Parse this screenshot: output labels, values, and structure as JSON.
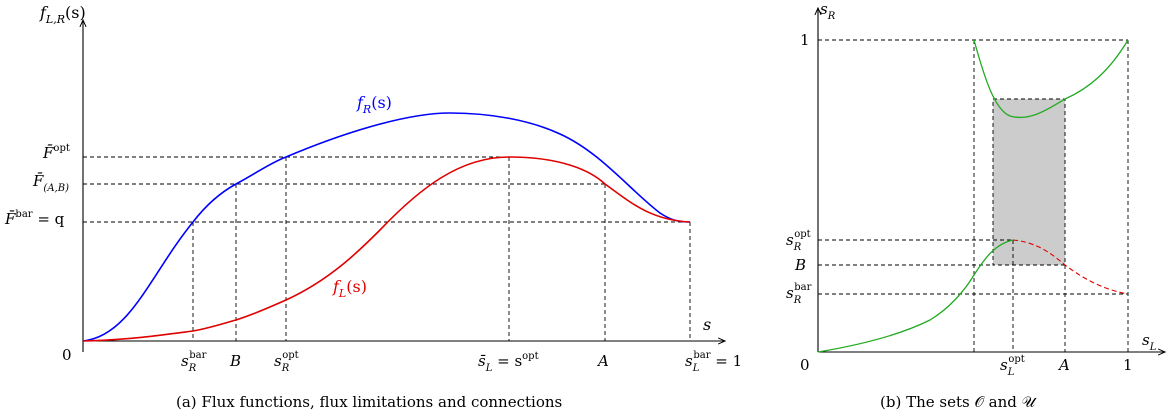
{
  "left": {
    "y_axis_label": {
      "main": "f",
      "sub": "L,R",
      "tail": "(s)"
    },
    "x_axis_label": "s",
    "origin_label": "0",
    "curve_labels": {
      "fR": {
        "main": "f",
        "sub": "R",
        "tail": "(s)"
      },
      "fL": {
        "main": "f",
        "sub": "L",
        "tail": "(s)"
      }
    },
    "y_ticks": {
      "F_opt": {
        "main": "F̄",
        "sup": "opt",
        "tail": ""
      },
      "F_AB": {
        "main": "F̄",
        "sub": "(A,B)",
        "tail": ""
      },
      "F_bar": {
        "main": "F̄",
        "sup": "bar",
        "tail": " = q"
      }
    },
    "x_ticks": {
      "sR_bar": {
        "main": "s",
        "sub": "R",
        "sup": "bar",
        "tail": ""
      },
      "B": "B",
      "sR_opt": {
        "main": "s",
        "sub": "R",
        "sup": "opt",
        "tail": ""
      },
      "sbarL": {
        "main": "s̄",
        "sub": "L",
        "tail": " = s",
        "tailsup": "opt"
      },
      "A": "A",
      "sL_bar": {
        "main": "s",
        "sub": "L",
        "sup": "bar",
        "tail": " = 1"
      }
    },
    "caption": "(a) Flux functions, flux limitations and connections"
  },
  "right": {
    "y_axis_label": {
      "main": "s",
      "sub": "R"
    },
    "x_axis_label": {
      "main": "s",
      "sub": "L"
    },
    "origin_label": "0",
    "y_ticks": {
      "one": "1",
      "sR_opt": {
        "main": "s",
        "sub": "R",
        "sup": "opt"
      },
      "B": "B",
      "sR_bar": {
        "main": "s",
        "sub": "R",
        "sup": "bar"
      }
    },
    "x_ticks": {
      "sL_opt": {
        "main": "s",
        "sub": "L",
        "sup": "opt"
      },
      "A": "A",
      "one": "1"
    },
    "caption_prefix": "(b) The sets ",
    "set_O": "𝒪",
    "caption_and": " and ",
    "set_U": "𝒰"
  },
  "colors": {
    "fR": "#0000ff",
    "fL": "#e00000",
    "green": "#22aa22",
    "shade": "#cccccc"
  }
}
